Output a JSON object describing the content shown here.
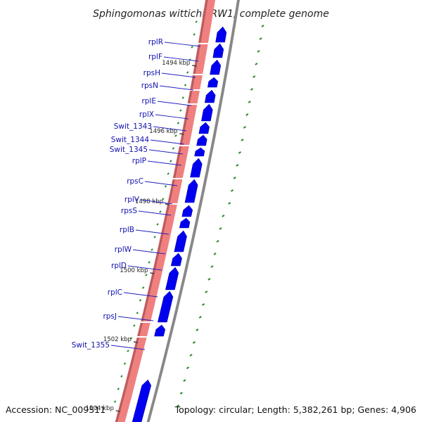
{
  "title": "Sphingomonas wittichii RW1, complete genome",
  "accession": "Accession: NC_009511",
  "topology": "Topology: circular; Length: 5,382,261 bp; Genes: 4,906",
  "colors": {
    "forward_strand": "#f08080",
    "forward_strand_dark": "#b85c5c",
    "gene_fill": "#0000ee",
    "backbone": "#888888",
    "gc_tick": "#2a8a2a",
    "label_line": "#2020c0"
  },
  "ticks": [
    {
      "label": "1494 kbp"
    },
    {
      "label": "1496 kbp"
    },
    {
      "label": "1498 kbp"
    },
    {
      "label": "1500 kbp"
    },
    {
      "label": "1502 kbp"
    },
    {
      "label": "1504 kbp"
    }
  ],
  "genes": [
    {
      "label": "rplR"
    },
    {
      "label": "rplF"
    },
    {
      "label": "rpsH"
    },
    {
      "label": "rpsN"
    },
    {
      "label": "rplE"
    },
    {
      "label": "rplX"
    },
    {
      "label": "Swit_1343"
    },
    {
      "label": "Swit_1344"
    },
    {
      "label": "Swit_1345"
    },
    {
      "label": "rplP"
    },
    {
      "label": "rpsC"
    },
    {
      "label": "rplV"
    },
    {
      "label": "rpsS"
    },
    {
      "label": "rplB"
    },
    {
      "label": "rplW"
    },
    {
      "label": "rplD"
    },
    {
      "label": "rplC"
    },
    {
      "label": "rpsJ"
    },
    {
      "label": "Swit_1355"
    }
  ]
}
